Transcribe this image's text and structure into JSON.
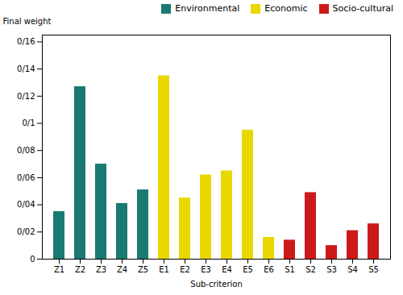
{
  "chart_data": {
    "type": "bar",
    "categories": [
      "Z1",
      "Z2",
      "Z3",
      "Z4",
      "Z5",
      "E1",
      "E2",
      "E3",
      "E4",
      "E5",
      "E6",
      "S1",
      "S2",
      "S3",
      "S4",
      "S5"
    ],
    "series": [
      {
        "name": "Environmental",
        "color": "#1a7a72",
        "values": [
          0.035,
          0.127,
          0.07,
          0.041,
          0.051,
          null,
          null,
          null,
          null,
          null,
          null,
          null,
          null,
          null,
          null,
          null
        ]
      },
      {
        "name": "Economic",
        "color": "#e8d800",
        "values": [
          null,
          null,
          null,
          null,
          null,
          0.135,
          0.045,
          0.062,
          0.065,
          0.095,
          0.016,
          null,
          null,
          null,
          null,
          null
        ]
      },
      {
        "name": "Socio-cultural",
        "color": "#cc1a1a",
        "values": [
          null,
          null,
          null,
          null,
          null,
          null,
          null,
          null,
          null,
          null,
          null,
          0.014,
          0.049,
          0.01,
          0.021,
          0.026
        ]
      }
    ],
    "xlabel": "Sub-criterion",
    "ylabel": "Final weight",
    "ylim": [
      0,
      0.165
    ],
    "yticks": [
      0,
      {
        "value": 0.02,
        "label": "0/02"
      },
      {
        "value": 0.04,
        "label": "0/04"
      },
      {
        "value": 0.06,
        "label": "0/06"
      },
      {
        "value": 0.08,
        "label": "0/08"
      },
      {
        "value": 0.1,
        "label": "0/1"
      },
      {
        "value": 0.12,
        "label": "0/12"
      },
      {
        "value": 0.14,
        "label": "0/14"
      },
      {
        "value": 0.16,
        "label": "0/16"
      }
    ],
    "legend": "upper right",
    "grid": false
  }
}
